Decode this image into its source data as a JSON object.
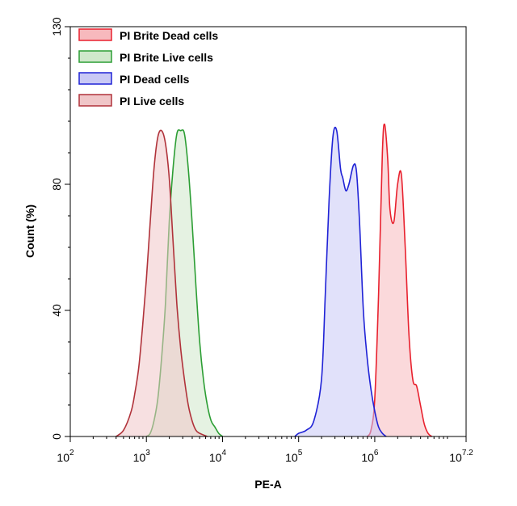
{
  "chart_data": {
    "type": "histogram",
    "title": "",
    "xlabel": "PE-A",
    "ylabel": "Count (%)",
    "x_scale": "log",
    "xlim_log10": [
      2,
      7.2
    ],
    "ylim": [
      0,
      130
    ],
    "x_ticks": [
      {
        "base": "10",
        "exp": "2",
        "log": 2
      },
      {
        "base": "10",
        "exp": "3",
        "log": 3
      },
      {
        "base": "10",
        "exp": "4",
        "log": 4
      },
      {
        "base": "10",
        "exp": "5",
        "log": 5
      },
      {
        "base": "10",
        "exp": "6",
        "log": 6
      },
      {
        "base": "10",
        "exp": "7.2",
        "log": 7.2
      }
    ],
    "y_ticks": [
      {
        "label": "0",
        "value": 0
      },
      {
        "label": "40",
        "value": 40
      },
      {
        "label": "80",
        "value": 80
      },
      {
        "label": "130",
        "value": 130
      }
    ],
    "legend_position": "top-left",
    "series": [
      {
        "name": "PI Brite Dead cells",
        "stroke": "#e8212e",
        "fill": "#f7b9bd",
        "points": [
          [
            5.9,
            0
          ],
          [
            5.95,
            2
          ],
          [
            6.0,
            12
          ],
          [
            6.05,
            45
          ],
          [
            6.1,
            90
          ],
          [
            6.13,
            99
          ],
          [
            6.17,
            88
          ],
          [
            6.2,
            72
          ],
          [
            6.25,
            68
          ],
          [
            6.3,
            80
          ],
          [
            6.35,
            83
          ],
          [
            6.4,
            60
          ],
          [
            6.45,
            32
          ],
          [
            6.5,
            18
          ],
          [
            6.55,
            16
          ],
          [
            6.6,
            10
          ],
          [
            6.65,
            4
          ],
          [
            6.7,
            1
          ],
          [
            6.75,
            0
          ]
        ]
      },
      {
        "name": "PI Brite Live cells",
        "stroke": "#2c9e34",
        "fill": "#cfe8cb",
        "points": [
          [
            3.0,
            0
          ],
          [
            3.05,
            1
          ],
          [
            3.1,
            5
          ],
          [
            3.15,
            12
          ],
          [
            3.2,
            25
          ],
          [
            3.25,
            42
          ],
          [
            3.3,
            68
          ],
          [
            3.35,
            85
          ],
          [
            3.4,
            96
          ],
          [
            3.45,
            97
          ],
          [
            3.5,
            96
          ],
          [
            3.55,
            85
          ],
          [
            3.6,
            68
          ],
          [
            3.65,
            48
          ],
          [
            3.7,
            30
          ],
          [
            3.75,
            18
          ],
          [
            3.8,
            10
          ],
          [
            3.85,
            5
          ],
          [
            3.9,
            3
          ],
          [
            3.95,
            1
          ],
          [
            4.0,
            0
          ]
        ]
      },
      {
        "name": "PI Dead cells",
        "stroke": "#1f22d6",
        "fill": "#c9c9f5",
        "points": [
          [
            4.95,
            0
          ],
          [
            5.0,
            1
          ],
          [
            5.1,
            2
          ],
          [
            5.2,
            5
          ],
          [
            5.3,
            18
          ],
          [
            5.35,
            45
          ],
          [
            5.4,
            75
          ],
          [
            5.45,
            95
          ],
          [
            5.5,
            97
          ],
          [
            5.55,
            85
          ],
          [
            5.58,
            82
          ],
          [
            5.62,
            78
          ],
          [
            5.66,
            80
          ],
          [
            5.72,
            86
          ],
          [
            5.76,
            84
          ],
          [
            5.8,
            68
          ],
          [
            5.85,
            40
          ],
          [
            5.9,
            25
          ],
          [
            5.95,
            15
          ],
          [
            6.0,
            8
          ],
          [
            6.05,
            3
          ],
          [
            6.1,
            1
          ],
          [
            6.15,
            0
          ]
        ]
      },
      {
        "name": "PI Live cells",
        "stroke": "#b0323a",
        "fill": "#f0c6c8",
        "points": [
          [
            2.6,
            0
          ],
          [
            2.7,
            2
          ],
          [
            2.8,
            8
          ],
          [
            2.85,
            14
          ],
          [
            2.9,
            22
          ],
          [
            2.95,
            35
          ],
          [
            3.0,
            50
          ],
          [
            3.05,
            68
          ],
          [
            3.1,
            85
          ],
          [
            3.15,
            95
          ],
          [
            3.2,
            97
          ],
          [
            3.25,
            93
          ],
          [
            3.3,
            82
          ],
          [
            3.35,
            62
          ],
          [
            3.4,
            42
          ],
          [
            3.45,
            28
          ],
          [
            3.5,
            18
          ],
          [
            3.55,
            10
          ],
          [
            3.6,
            5
          ],
          [
            3.65,
            2
          ],
          [
            3.7,
            1
          ],
          [
            3.8,
            0
          ]
        ]
      }
    ]
  }
}
